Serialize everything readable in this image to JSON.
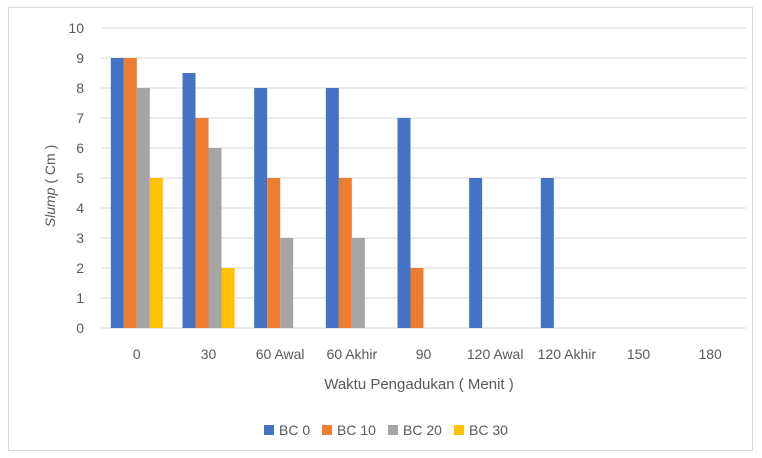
{
  "chart_data": {
    "type": "bar",
    "title": "",
    "xlabel": "Waktu Pengadukan ( Menit )",
    "ylabel_italic": "Slump",
    "ylabel_rest": " ( Cm )",
    "ylim": [
      0,
      10
    ],
    "yticks": [
      0,
      1,
      2,
      3,
      4,
      5,
      6,
      7,
      8,
      9,
      10
    ],
    "grid": true,
    "legend_position": "bottom",
    "categories": [
      "0",
      "30",
      "60  Awal",
      "60 Akhir",
      "90",
      "120 Awal",
      "120 Akhir",
      "150",
      "180"
    ],
    "series": [
      {
        "name": "BC 0",
        "color": "#4472c4",
        "values": [
          9,
          8.5,
          8,
          8,
          7,
          5,
          5,
          0,
          0
        ]
      },
      {
        "name": "BC 10",
        "color": "#ed7d31",
        "values": [
          9,
          7,
          5,
          5,
          2,
          0,
          0,
          0,
          0
        ]
      },
      {
        "name": "BC 20",
        "color": "#a5a5a5",
        "values": [
          8,
          6,
          3,
          3,
          0,
          0,
          0,
          0,
          0
        ]
      },
      {
        "name": "BC 30",
        "color": "#ffc000",
        "values": [
          5,
          2,
          0,
          0,
          0,
          0,
          0,
          0,
          0
        ]
      }
    ]
  }
}
